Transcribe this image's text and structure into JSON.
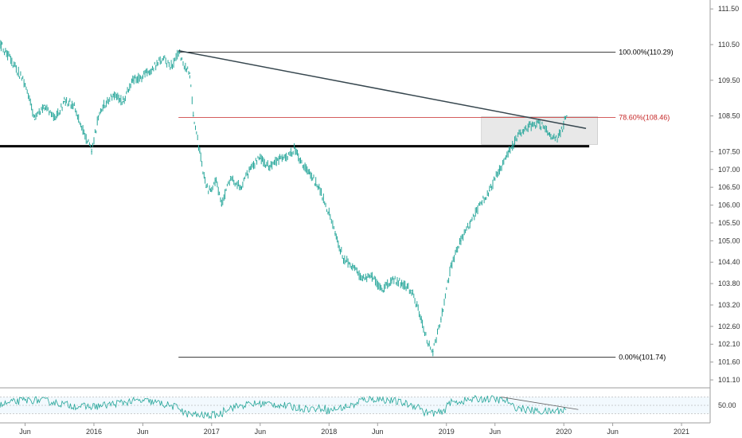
{
  "chart_data": {
    "type": "line",
    "title": "",
    "xlabel": "",
    "ylabel": "",
    "x_range": [
      "2015-03-15",
      "2021-03-31"
    ],
    "ylim": [
      100.9,
      111.75
    ],
    "y_ticks": [
      101.1,
      101.6,
      102.1,
      102.6,
      103.2,
      103.8,
      104.4,
      105.0,
      105.5,
      106.0,
      106.5,
      107.0,
      107.5,
      108.5,
      109.5,
      110.5,
      111.5
    ],
    "x_ticks": [
      {
        "label": "Jun",
        "date": "2015-06-01"
      },
      {
        "label": "2016",
        "date": "2016-01-01"
      },
      {
        "label": "Jun",
        "date": "2016-06-01"
      },
      {
        "label": "2017",
        "date": "2017-01-01"
      },
      {
        "label": "Jun",
        "date": "2017-06-01"
      },
      {
        "label": "2018",
        "date": "2018-01-01"
      },
      {
        "label": "Jun",
        "date": "2018-06-01"
      },
      {
        "label": "2019",
        "date": "2019-01-01"
      },
      {
        "label": "Jun",
        "date": "2019-06-01"
      },
      {
        "label": "2020",
        "date": "2020-01-01"
      },
      {
        "label": "Jun",
        "date": "2020-06-01"
      },
      {
        "label": "2021",
        "date": "2021-01-01"
      }
    ],
    "series": [
      {
        "color": "#26a69a",
        "x": [
          "2015-03-15",
          "2015-04-01",
          "2015-05-01",
          "2015-06-01",
          "2015-07-01",
          "2015-08-01",
          "2015-09-01",
          "2015-10-01",
          "2015-11-01",
          "2015-12-01",
          "2015-12-25",
          "2016-01-15",
          "2016-02-01",
          "2016-03-01",
          "2016-04-01",
          "2016-05-01",
          "2016-06-01",
          "2016-07-01",
          "2016-08-01",
          "2016-09-01",
          "2016-09-20",
          "2016-10-15",
          "2016-10-25",
          "2016-11-05",
          "2016-11-25",
          "2016-12-15",
          "2017-01-01",
          "2017-01-15",
          "2017-02-01",
          "2017-03-01",
          "2017-04-01",
          "2017-05-01",
          "2017-06-01",
          "2017-07-01",
          "2017-08-01",
          "2017-09-01",
          "2017-09-15",
          "2017-10-01",
          "2017-11-01",
          "2017-12-01",
          "2018-01-01",
          "2018-01-20",
          "2018-02-15",
          "2018-03-15",
          "2018-04-15",
          "2018-05-15",
          "2018-06-15",
          "2018-07-15",
          "2018-08-15",
          "2018-09-15",
          "2018-10-15",
          "2018-11-05",
          "2018-11-20",
          "2018-12-15",
          "2019-01-15",
          "2019-02-15",
          "2019-03-15",
          "2019-04-15",
          "2019-05-15",
          "2019-06-15",
          "2019-07-15",
          "2019-08-15",
          "2019-09-15",
          "2019-10-15",
          "2019-11-15",
          "2019-12-15",
          "2020-01-10"
        ],
        "values": [
          110.5,
          110.3,
          109.9,
          109.4,
          108.4,
          108.8,
          108.4,
          108.9,
          108.8,
          108.0,
          107.5,
          108.5,
          108.8,
          109.1,
          108.9,
          109.5,
          109.6,
          109.8,
          110.1,
          109.9,
          110.3,
          109.8,
          109.7,
          108.5,
          107.5,
          106.5,
          106.4,
          106.7,
          106.0,
          106.8,
          106.5,
          107.0,
          107.3,
          107.1,
          107.3,
          107.4,
          107.6,
          107.3,
          106.9,
          106.5,
          105.8,
          105.2,
          104.5,
          104.3,
          103.9,
          104.0,
          103.6,
          103.9,
          103.8,
          103.6,
          102.8,
          102.1,
          101.9,
          102.8,
          104.3,
          105.0,
          105.5,
          106.0,
          106.4,
          107.0,
          107.5,
          108.0,
          108.2,
          108.3,
          108.0,
          107.9,
          108.5
        ]
      }
    ],
    "fib_levels": [
      {
        "label": "100.00%(110.29)",
        "value": 110.29,
        "color": "#000000"
      },
      {
        "label": "78.60%(108.46)",
        "value": 108.46,
        "color": "#c62828"
      },
      {
        "label": "0.00%(101.74)",
        "value": 101.74,
        "color": "#000000"
      }
    ],
    "fib_start_date": "2016-09-20",
    "fib_end_date": "2020-06-10",
    "support_level": 107.65,
    "trendline": {
      "x": [
        "2016-09-20",
        "2020-03-10"
      ],
      "y": [
        110.33,
        108.15
      ]
    },
    "zone": {
      "x": [
        "2019-04-20",
        "2020-04-15"
      ],
      "y": [
        107.7,
        108.48
      ]
    },
    "rsi": {
      "y_tick": "50.00",
      "color": "#26a69a",
      "trendline": {
        "x": [
          "2019-06-20",
          "2020-02-15"
        ],
        "y": [
          70,
          40
        ]
      }
    }
  }
}
